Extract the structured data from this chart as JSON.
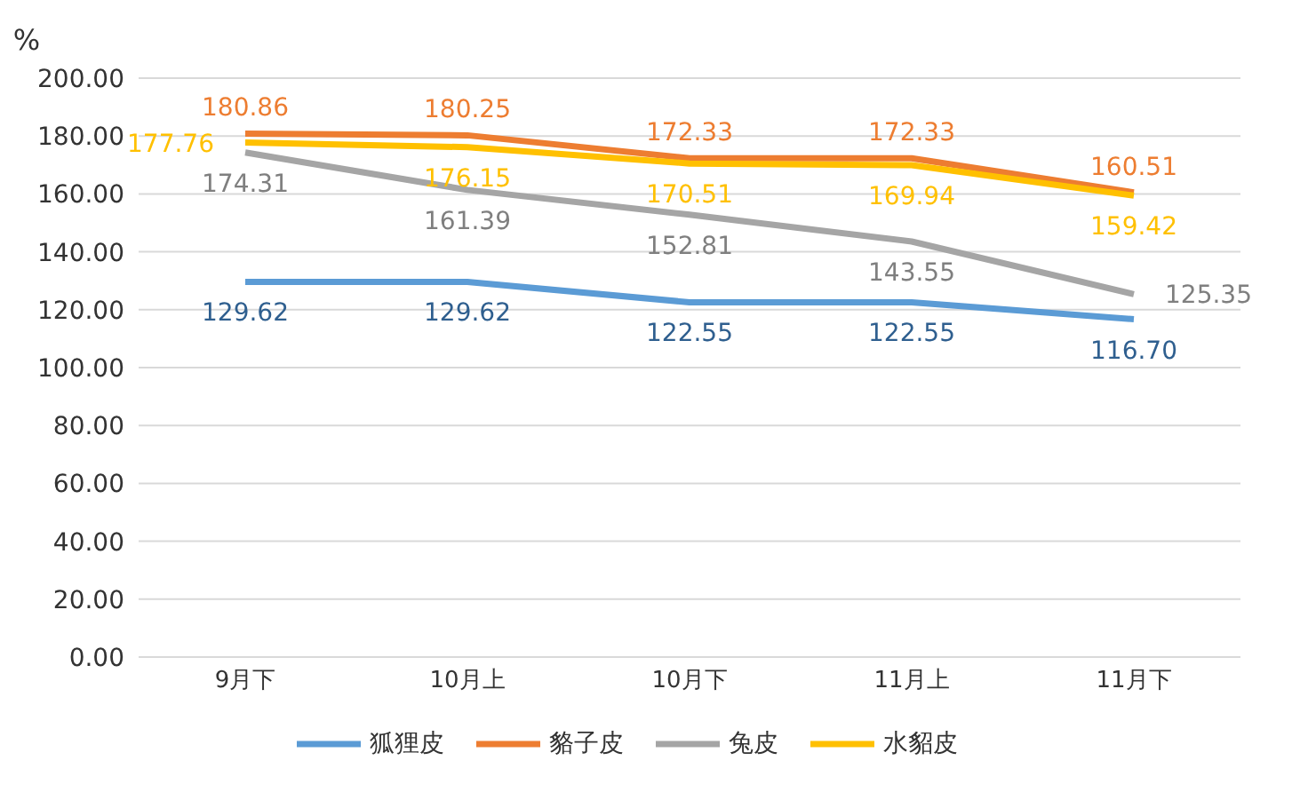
{
  "chart_data": {
    "type": "line",
    "ylabel": "%",
    "categories": [
      "9月下",
      "10月上",
      "10月下",
      "11月上",
      "11月下"
    ],
    "series": [
      {
        "name": "狐狸皮",
        "color": "#5b9bd5",
        "values": [
          129.62,
          129.62,
          122.55,
          122.55,
          116.7
        ],
        "value_labels": [
          "129.62",
          "129.62",
          "122.55",
          "122.55",
          "116.70"
        ]
      },
      {
        "name": "貉子皮",
        "color": "#ed7d31",
        "values": [
          180.86,
          180.25,
          172.33,
          172.33,
          160.51
        ],
        "value_labels": [
          "180.86",
          "180.25",
          "172.33",
          "172.33",
          "160.51"
        ]
      },
      {
        "name": "兔皮",
        "color": "#a5a5a5",
        "values": [
          174.31,
          161.39,
          152.81,
          143.55,
          125.35
        ],
        "value_labels": [
          "174.31",
          "161.39",
          "152.81",
          "143.55",
          "125.35"
        ]
      },
      {
        "name": "水貂皮",
        "color": "#ffc000",
        "values": [
          177.76,
          176.15,
          170.51,
          169.94,
          159.42
        ],
        "value_labels": [
          "177.76",
          "176.15",
          "170.51",
          "169.94",
          "159.42"
        ]
      }
    ],
    "ylim": [
      0,
      200
    ],
    "yticks": [
      {
        "value": 0,
        "label": "0.00"
      },
      {
        "value": 20,
        "label": "20.00"
      },
      {
        "value": 40,
        "label": "40.00"
      },
      {
        "value": 60,
        "label": "60.00"
      },
      {
        "value": 80,
        "label": "80.00"
      },
      {
        "value": 100,
        "label": "100.00"
      },
      {
        "value": 120,
        "label": "120.00"
      },
      {
        "value": 140,
        "label": "140.00"
      },
      {
        "value": 160,
        "label": "160.00"
      },
      {
        "value": 180,
        "label": "180.00"
      },
      {
        "value": 200,
        "label": "200.00"
      }
    ],
    "grid": "y",
    "legend": "bottom",
    "marker": "none",
    "line_style": "solid"
  }
}
